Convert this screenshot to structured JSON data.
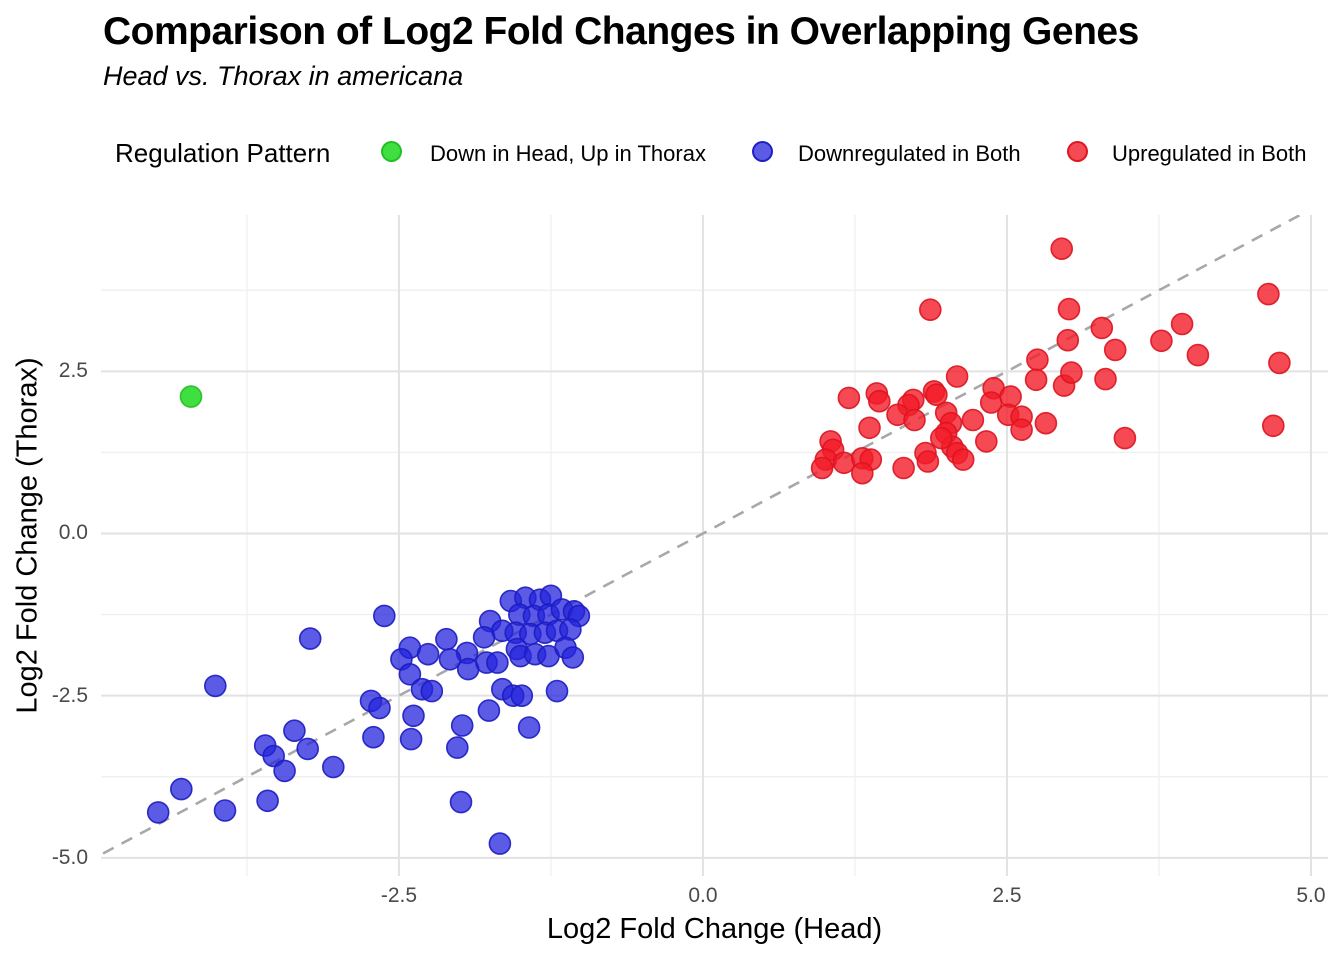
{
  "chart_data": {
    "type": "scatter",
    "title": "Comparison of Log2 Fold Changes in Overlapping Genes",
    "subtitle": "Head vs. Thorax in americana",
    "xlabel": "Log2 Fold Change (Head)",
    "ylabel": "Log2 Fold Change (Thorax)",
    "legend_title": "Regulation Pattern",
    "legend_position": "top",
    "grid": "on",
    "xlim": [
      -4.95,
      5.14
    ],
    "ylim": [
      -5.28,
      4.91
    ],
    "x_ticks": [
      -2.5,
      0,
      2.5,
      5
    ],
    "x_tick_labels": [
      "-2.5",
      "0.0",
      "2.5",
      "5.0"
    ],
    "y_ticks": [
      2.5,
      0,
      -2.5,
      -5
    ],
    "y_tick_labels": [
      "2.5",
      "0.0",
      "-2.5",
      "-5.0"
    ],
    "x_minor_ticks": [
      -3.75,
      -1.25,
      1.25,
      3.75
    ],
    "y_minor_ticks": [
      3.75,
      1.25,
      -1.25,
      -3.75
    ],
    "major_grid_color": "#e2e2e2",
    "minor_grid_color": "#f0f0f0",
    "identity_line": {
      "type": "dashed",
      "equation": "y = x",
      "color": "#a8a8a8"
    },
    "point_radius": 10.5,
    "series": [
      {
        "name": "Down in Head, Up in Thorax",
        "color": "#2adc2a",
        "stroke": "#24bc24",
        "opacity": 0.9,
        "points": [
          [
            -4.21,
            2.11
          ]
        ]
      },
      {
        "name": "Downregulated in Both",
        "color": "#2424dc",
        "stroke": "#1c1cc0",
        "opacity": 0.75,
        "points": [
          [
            -4.48,
            -4.3
          ],
          [
            -4.29,
            -3.94
          ],
          [
            -3.93,
            -4.27
          ],
          [
            -3.58,
            -4.12
          ],
          [
            -3.6,
            -3.27
          ],
          [
            -3.53,
            -3.43
          ],
          [
            -3.36,
            -3.04
          ],
          [
            -3.44,
            -3.66
          ],
          [
            -3.25,
            -3.32
          ],
          [
            -3.04,
            -3.6
          ],
          [
            -2.71,
            -3.14
          ],
          [
            -2.73,
            -2.58
          ],
          [
            -2.66,
            -2.69
          ],
          [
            -4.01,
            -2.35
          ],
          [
            -3.23,
            -1.62
          ],
          [
            -2.62,
            -1.27
          ],
          [
            -2.41,
            -1.76
          ],
          [
            -2.48,
            -1.94
          ],
          [
            -2.26,
            -1.86
          ],
          [
            -2.41,
            -2.17
          ],
          [
            -2.31,
            -2.4
          ],
          [
            -2.23,
            -2.43
          ],
          [
            -2.38,
            -2.81
          ],
          [
            -2.4,
            -3.17
          ],
          [
            -1.58,
            -1.04
          ],
          [
            -1.46,
            -0.99
          ],
          [
            -1.34,
            -1.02
          ],
          [
            -1.25,
            -0.96
          ],
          [
            -1.51,
            -1.25
          ],
          [
            -1.39,
            -1.27
          ],
          [
            -1.27,
            -1.25
          ],
          [
            -1.16,
            -1.17
          ],
          [
            -1.06,
            -1.2
          ],
          [
            -1.02,
            -1.27
          ],
          [
            -1.75,
            -1.35
          ],
          [
            -1.65,
            -1.5
          ],
          [
            -1.54,
            -1.53
          ],
          [
            -1.42,
            -1.55
          ],
          [
            -1.3,
            -1.53
          ],
          [
            -1.2,
            -1.5
          ],
          [
            -1.09,
            -1.48
          ],
          [
            -1.8,
            -1.6
          ],
          [
            -2.11,
            -1.63
          ],
          [
            -1.94,
            -1.84
          ],
          [
            -2.08,
            -1.94
          ],
          [
            -1.93,
            -2.09
          ],
          [
            -1.78,
            -1.99
          ],
          [
            -1.69,
            -1.99
          ],
          [
            -1.53,
            -1.78
          ],
          [
            -1.5,
            -1.89
          ],
          [
            -1.38,
            -1.86
          ],
          [
            -1.27,
            -1.89
          ],
          [
            -1.13,
            -1.76
          ],
          [
            -1.07,
            -1.91
          ],
          [
            -1.65,
            -2.4
          ],
          [
            -1.56,
            -2.5
          ],
          [
            -1.49,
            -2.5
          ],
          [
            -1.2,
            -2.43
          ],
          [
            -1.76,
            -2.73
          ],
          [
            -1.98,
            -2.96
          ],
          [
            -1.43,
            -2.99
          ],
          [
            -2.02,
            -3.3
          ],
          [
            -1.99,
            -4.14
          ],
          [
            -1.67,
            -4.78
          ]
        ]
      },
      {
        "name": "Upregulated in Both",
        "color": "#f21c28",
        "stroke": "#dc1420",
        "opacity": 0.8,
        "points": [
          [
            2.95,
            4.39
          ],
          [
            1.87,
            3.45
          ],
          [
            1.2,
            2.09
          ],
          [
            1.43,
            2.16
          ],
          [
            1.45,
            2.04
          ],
          [
            1.9,
            2.19
          ],
          [
            1.92,
            2.14
          ],
          [
            1.73,
            2.06
          ],
          [
            1.69,
            1.98
          ],
          [
            1.6,
            1.83
          ],
          [
            1.74,
            1.75
          ],
          [
            2.0,
            1.86
          ],
          [
            2.04,
            1.7
          ],
          [
            2.22,
            1.75
          ],
          [
            2.09,
            2.42
          ],
          [
            2.39,
            2.24
          ],
          [
            2.37,
            2.02
          ],
          [
            2.53,
            2.11
          ],
          [
            2.51,
            1.83
          ],
          [
            2.62,
            1.8
          ],
          [
            2.62,
            1.6
          ],
          [
            2.82,
            1.7
          ],
          [
            1.37,
            1.63
          ],
          [
            1.05,
            1.42
          ],
          [
            1.07,
            1.29
          ],
          [
            1.01,
            1.14
          ],
          [
            0.98,
            1.01
          ],
          [
            1.16,
            1.09
          ],
          [
            1.31,
            1.16
          ],
          [
            1.38,
            1.14
          ],
          [
            1.31,
            0.93
          ],
          [
            1.65,
            1.01
          ],
          [
            1.83,
            1.24
          ],
          [
            1.85,
            1.11
          ],
          [
            2.0,
            1.55
          ],
          [
            2.05,
            1.34
          ],
          [
            2.09,
            1.24
          ],
          [
            2.14,
            1.14
          ],
          [
            2.33,
            1.42
          ],
          [
            1.96,
            1.47
          ],
          [
            2.75,
            2.68
          ],
          [
            2.74,
            2.37
          ],
          [
            2.97,
            2.28
          ],
          [
            4.65,
            3.69
          ],
          [
            3.01,
            3.46
          ],
          [
            3.28,
            3.17
          ],
          [
            3.94,
            3.23
          ],
          [
            3.0,
            2.98
          ],
          [
            3.39,
            2.83
          ],
          [
            3.77,
            2.97
          ],
          [
            4.07,
            2.75
          ],
          [
            4.74,
            2.63
          ],
          [
            3.03,
            2.48
          ],
          [
            3.31,
            2.38
          ],
          [
            3.47,
            1.47
          ],
          [
            4.69,
            1.66
          ]
        ]
      }
    ]
  }
}
